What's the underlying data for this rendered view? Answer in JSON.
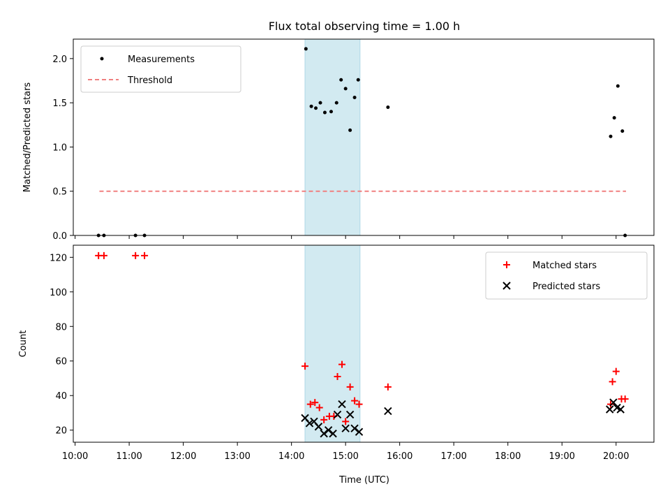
{
  "title": "Flux total observing time = 1.00 h",
  "colors": {
    "measurement": "#000000",
    "threshold": "#f08080",
    "matched": "#ff0000",
    "predicted": "#000000",
    "highlight": "#add8e6"
  },
  "chart_data": [
    {
      "type": "scatter",
      "panel": "top",
      "ylabel": "Matched/Predicted stars",
      "xlabel": "",
      "ylim": [
        0,
        2.22
      ],
      "y_ticks": [
        "0.0",
        "0.5",
        "1.0",
        "1.5",
        "2.0"
      ],
      "y_tick_values": [
        0,
        0.5,
        1.0,
        1.5,
        2.0
      ],
      "legend": {
        "placement": "upper-left",
        "entries": [
          "Measurements",
          "Threshold"
        ]
      },
      "highlight_span": [
        "14:15",
        "15:16"
      ],
      "threshold": {
        "name": "Threshold",
        "value": 0.5,
        "x_range": [
          "10:27",
          "20:11"
        ]
      },
      "series": [
        {
          "name": "Measurements",
          "x": [
            "10:26",
            "10:32",
            "11:07",
            "11:17",
            "14:16",
            "14:22",
            "14:27",
            "14:32",
            "14:37",
            "14:44",
            "14:50",
            "14:55",
            "15:00",
            "15:05",
            "15:10",
            "15:14",
            "15:47",
            "19:54",
            "19:58",
            "20:02",
            "20:07",
            "20:10"
          ],
          "y": [
            0,
            0,
            0,
            0,
            2.11,
            1.46,
            1.44,
            1.5,
            1.39,
            1.4,
            1.5,
            1.76,
            1.66,
            1.19,
            1.56,
            1.76,
            1.45,
            1.12,
            1.33,
            1.69,
            1.18,
            0
          ]
        }
      ]
    },
    {
      "type": "scatter",
      "panel": "bottom",
      "xlabel": "Time (UTC)",
      "ylabel": "Count",
      "ylim": [
        13,
        127
      ],
      "y_ticks": [
        "20",
        "40",
        "60",
        "80",
        "100",
        "120"
      ],
      "y_tick_values": [
        20,
        40,
        60,
        80,
        100,
        120
      ],
      "xlim": [
        "09:58",
        "20:42"
      ],
      "x_ticks": [
        "10:00",
        "11:00",
        "12:00",
        "13:00",
        "14:00",
        "15:00",
        "16:00",
        "17:00",
        "18:00",
        "19:00",
        "20:00"
      ],
      "legend": {
        "placement": "upper-right",
        "entries": [
          "Matched stars",
          "Predicted stars"
        ]
      },
      "highlight_span": [
        "14:15",
        "15:16"
      ],
      "series": [
        {
          "name": "Matched stars",
          "x": [
            "10:26",
            "10:32",
            "11:07",
            "11:17",
            "14:15",
            "14:21",
            "14:26",
            "14:31",
            "14:36",
            "14:42",
            "14:47",
            "14:51",
            "14:56",
            "15:00",
            "15:05",
            "15:10",
            "15:15",
            "15:47",
            "19:54",
            "19:56",
            "20:00",
            "20:06",
            "20:10"
          ],
          "y": [
            121,
            121,
            121,
            121,
            57,
            35,
            36,
            33,
            26,
            28,
            28,
            51,
            58,
            25,
            45,
            37,
            35,
            45,
            35,
            48,
            54,
            38,
            38
          ]
        },
        {
          "name": "Predicted stars",
          "x": [
            "14:15",
            "14:20",
            "14:25",
            "14:30",
            "14:36",
            "14:41",
            "14:46",
            "14:51",
            "14:56",
            "15:00",
            "15:05",
            "15:10",
            "15:15",
            "15:47",
            "19:53",
            "19:57",
            "20:01",
            "20:05"
          ],
          "y": [
            27,
            24,
            25,
            22,
            18,
            20,
            18,
            29,
            35,
            21,
            29,
            21,
            19,
            31,
            32,
            36,
            33,
            32
          ]
        }
      ]
    }
  ]
}
